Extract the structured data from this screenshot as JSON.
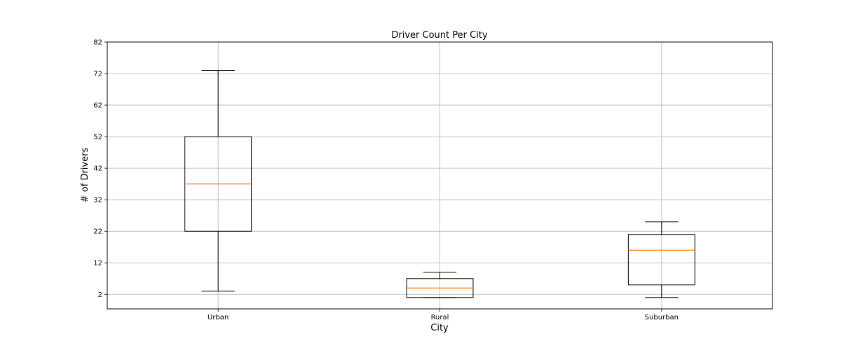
{
  "chart_data": {
    "type": "box",
    "title": "Driver Count Per City",
    "xlabel": "City",
    "ylabel": "# of Drivers",
    "categories": [
      "Urban",
      "Rural",
      "Suburban"
    ],
    "ylim": [
      -2.6,
      82
    ],
    "yticks": [
      2,
      12,
      22,
      32,
      42,
      52,
      62,
      72,
      82
    ],
    "grid": true,
    "series": [
      {
        "category": "Urban",
        "whisker_low": 3,
        "q1": 22,
        "median": 37,
        "q3": 52,
        "whisker_high": 73
      },
      {
        "category": "Rural",
        "whisker_low": 1,
        "q1": 1,
        "median": 4,
        "q3": 7,
        "whisker_high": 9
      },
      {
        "category": "Suburban",
        "whisker_low": 1,
        "q1": 5,
        "median": 16,
        "q3": 21,
        "whisker_high": 25
      }
    ],
    "colors": {
      "box": "#000000",
      "median": "#ff7f0e",
      "grid": "#b0b0b0"
    }
  }
}
